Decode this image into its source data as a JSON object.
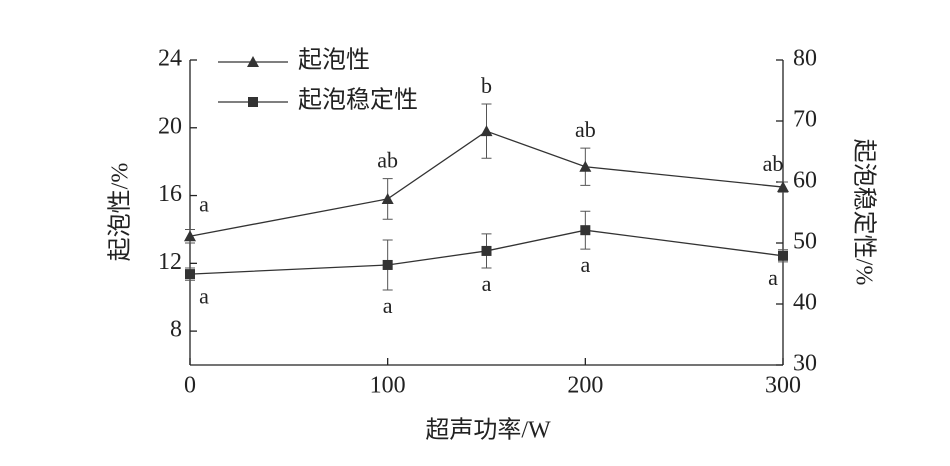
{
  "chart_data": {
    "type": "line",
    "x_label": "超声功率/W",
    "y_label": "起泡性/%",
    "y2_label": "起泡稳定性/%",
    "x": [
      0,
      100,
      150,
      200,
      300
    ],
    "xlim": [
      0,
      300
    ],
    "xticks": [
      0,
      100,
      200,
      300
    ],
    "ylim": [
      6,
      24
    ],
    "yticks": [
      8,
      12,
      16,
      20,
      24
    ],
    "y2lim": [
      30,
      80
    ],
    "y2ticks": [
      30,
      40,
      50,
      60,
      70,
      80
    ],
    "legend": "upper left",
    "series": [
      {
        "name": "起泡性",
        "color": "#333333",
        "marker": "triangle",
        "axis": "y",
        "values": [
          13.6,
          15.8,
          19.8,
          17.7,
          16.5
        ],
        "errors": [
          0.4,
          1.2,
          1.6,
          1.1,
          0.3
        ],
        "significance": [
          "a",
          "ab",
          "b",
          "ab",
          "ab"
        ]
      },
      {
        "name": "起泡稳定性",
        "color": "#333333",
        "marker": "square",
        "axis": "y2",
        "values": [
          44.9,
          46.4,
          48.7,
          52.1,
          47.9
        ],
        "errors": [
          1.0,
          4.1,
          2.8,
          3.1,
          1.0
        ],
        "significance": [
          "a",
          "a",
          "a",
          "a",
          "a"
        ]
      }
    ]
  }
}
